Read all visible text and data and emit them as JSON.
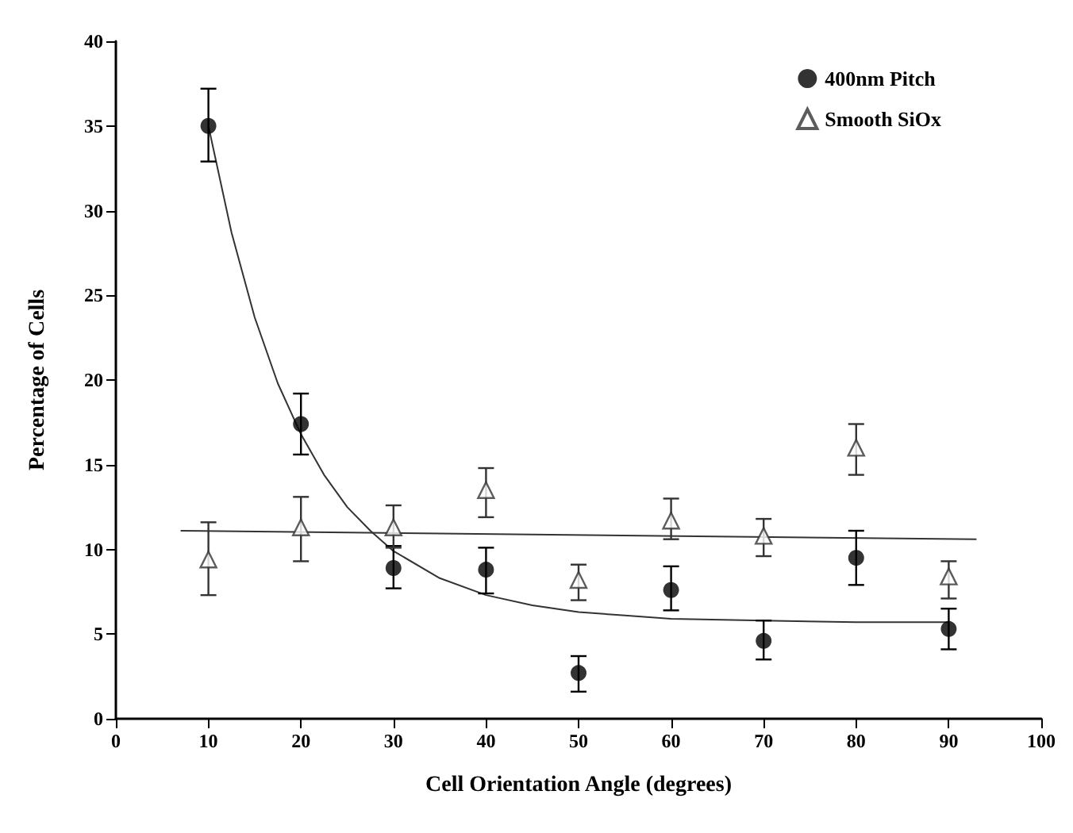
{
  "chart_data": {
    "type": "scatter",
    "xlabel": "Cell Orientation Angle (degrees)",
    "ylabel": "Percentage of Cells",
    "xlim": [
      0,
      100
    ],
    "xticks": [
      0,
      10,
      20,
      30,
      40,
      50,
      60,
      70,
      80,
      90,
      100
    ],
    "ylim": [
      0,
      40
    ],
    "yticks": [
      0,
      5,
      10,
      15,
      20,
      25,
      30,
      35,
      40
    ],
    "grid": false,
    "legend": "top right",
    "series": [
      {
        "name": "400nm Pitch",
        "marker": "circle",
        "color": "#000000",
        "x": [
          10,
          20,
          30,
          40,
          50,
          60,
          70,
          80,
          90
        ],
        "values": [
          35,
          17.4,
          8.9,
          8.8,
          2.7,
          7.6,
          4.6,
          9.5,
          5.3
        ],
        "errors": [
          [
            32.9,
            37.2
          ],
          [
            15.6,
            19.2
          ],
          [
            7.7,
            10.2
          ],
          [
            7.4,
            10.1
          ],
          [
            1.6,
            3.7
          ],
          [
            6.4,
            9.0
          ],
          [
            3.5,
            5.8
          ],
          [
            7.9,
            11.1
          ],
          [
            4.1,
            6.5
          ]
        ]
      },
      {
        "name": "Smooth SiOx",
        "marker": "triangle",
        "color": "#333333",
        "x": [
          10,
          20,
          30,
          40,
          50,
          60,
          70,
          80,
          90
        ],
        "values": [
          9.4,
          11.3,
          11.3,
          13.5,
          8.2,
          11.7,
          10.8,
          16.0,
          8.4
        ],
        "errors": [
          [
            7.3,
            11.6
          ],
          [
            9.3,
            13.1
          ],
          [
            10.1,
            12.6
          ],
          [
            11.9,
            14.8
          ],
          [
            7.0,
            9.1
          ],
          [
            10.6,
            13.0
          ],
          [
            9.6,
            11.8
          ],
          [
            14.4,
            17.4
          ],
          [
            7.1,
            9.3
          ]
        ]
      },
      {
        "type": "line",
        "color": "#333333",
        "marker": "none",
        "x": [
          10,
          12.5,
          15,
          17.5,
          20,
          22.5,
          25,
          27.5,
          30,
          35,
          40,
          45,
          50,
          55,
          60,
          70,
          80,
          90
        ],
        "values": [
          35,
          28.7,
          23.7,
          19.8,
          16.8,
          14.4,
          12.5,
          11.1,
          9.9,
          8.3,
          7.3,
          6.7,
          6.3,
          6.1,
          5.9,
          5.8,
          5.7,
          5.7
        ]
      },
      {
        "type": "line",
        "color": "#333333",
        "marker": "none",
        "x": [
          7,
          93
        ],
        "values": [
          11.1,
          10.6
        ]
      }
    ]
  }
}
